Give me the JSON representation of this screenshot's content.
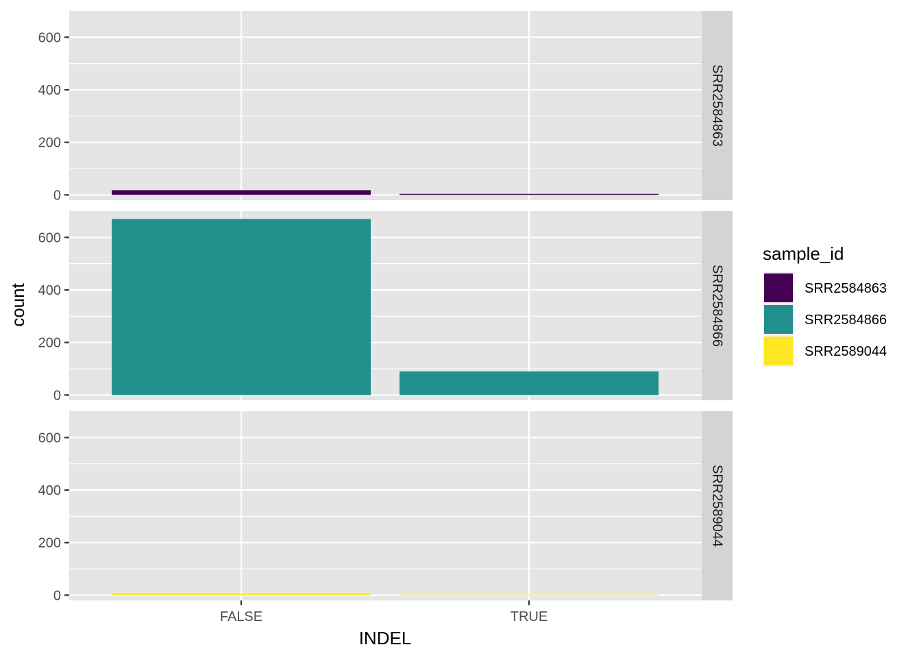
{
  "chart_data": {
    "type": "bar",
    "facet_by": "sample_id",
    "categories": [
      "FALSE",
      "TRUE"
    ],
    "xlabel": "INDEL",
    "ylabel": "count",
    "ylim": [
      0,
      700
    ],
    "yticks": [
      0,
      200,
      400,
      600
    ],
    "yticks_text": [
      "0",
      "200",
      "400",
      "600"
    ],
    "grid": true,
    "panels": [
      {
        "name": "SRR2584863",
        "color": "#440154",
        "values": [
          18,
          4
        ]
      },
      {
        "name": "SRR2584866",
        "color": "#21908C",
        "values": [
          670,
          90
        ]
      },
      {
        "name": "SRR2589044",
        "color": "#FDE725",
        "values": [
          6,
          2
        ]
      }
    ],
    "legend": {
      "title": "sample_id",
      "position": "right",
      "entries": [
        {
          "label": "SRR2584863",
          "color": "#440154"
        },
        {
          "label": "SRR2584866",
          "color": "#21908C"
        },
        {
          "label": "SRR2589044",
          "color": "#FDE725"
        }
      ]
    }
  }
}
